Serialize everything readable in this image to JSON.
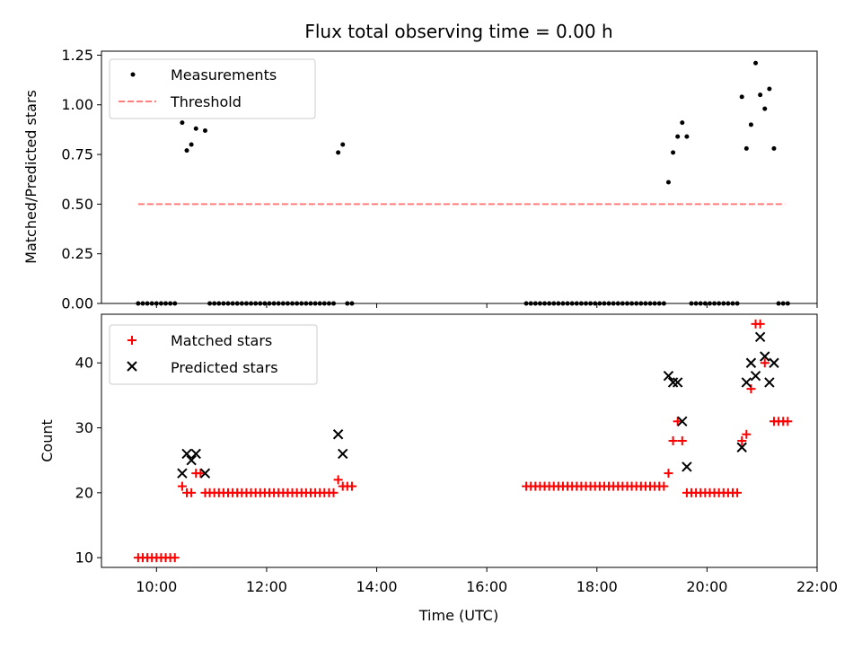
{
  "title": "Flux total observing time = 0.00 h",
  "chart_data": [
    {
      "type": "scatter",
      "ylabel": "Matched/Predicted stars",
      "xlabel": "",
      "xlim": [
        "09:00",
        "22:00"
      ],
      "ylim": [
        0,
        1.27
      ],
      "yticks": [
        0,
        0.25,
        0.5,
        0.75,
        1.0,
        1.25
      ],
      "ytick_labels": [
        "0.00",
        "0.25",
        "0.50",
        "0.75",
        "1.00",
        "1.25"
      ],
      "xticks": [
        "10:00",
        "12:00",
        "14:00",
        "16:00",
        "18:00",
        "20:00",
        "22:00"
      ],
      "legend_position": "top-left",
      "legend": [
        {
          "label": "Measurements",
          "marker": "dot",
          "color": "#000000"
        },
        {
          "label": "Threshold",
          "marker": "dashed-line",
          "color": "#ff7f7f"
        }
      ],
      "threshold": {
        "value": 0.5,
        "x_start": "09:40",
        "x_end": "21:25"
      },
      "measurements": [
        {
          "x": "09:40",
          "y": 0
        },
        {
          "x": "09:45",
          "y": 0
        },
        {
          "x": "09:50",
          "y": 0
        },
        {
          "x": "09:55",
          "y": 0
        },
        {
          "x": "10:00",
          "y": 0
        },
        {
          "x": "10:05",
          "y": 0
        },
        {
          "x": "10:10",
          "y": 0
        },
        {
          "x": "10:15",
          "y": 0
        },
        {
          "x": "10:20",
          "y": 0
        },
        {
          "x": "10:28",
          "y": 0.91
        },
        {
          "x": "10:33",
          "y": 0.77
        },
        {
          "x": "10:38",
          "y": 0.8
        },
        {
          "x": "10:43",
          "y": 0.88
        },
        {
          "x": "10:53",
          "y": 0.87
        },
        {
          "x": "10:58",
          "y": 0
        },
        {
          "x": "11:03",
          "y": 0
        },
        {
          "x": "11:08",
          "y": 0
        },
        {
          "x": "11:13",
          "y": 0
        },
        {
          "x": "11:18",
          "y": 0
        },
        {
          "x": "11:23",
          "y": 0
        },
        {
          "x": "11:28",
          "y": 0
        },
        {
          "x": "11:33",
          "y": 0
        },
        {
          "x": "11:38",
          "y": 0
        },
        {
          "x": "11:43",
          "y": 0
        },
        {
          "x": "11:48",
          "y": 0
        },
        {
          "x": "11:53",
          "y": 0
        },
        {
          "x": "11:58",
          "y": 0
        },
        {
          "x": "12:03",
          "y": 0
        },
        {
          "x": "12:08",
          "y": 0
        },
        {
          "x": "12:13",
          "y": 0
        },
        {
          "x": "12:18",
          "y": 0
        },
        {
          "x": "12:23",
          "y": 0
        },
        {
          "x": "12:28",
          "y": 0
        },
        {
          "x": "12:33",
          "y": 0
        },
        {
          "x": "12:38",
          "y": 0
        },
        {
          "x": "12:43",
          "y": 0
        },
        {
          "x": "12:48",
          "y": 0
        },
        {
          "x": "12:53",
          "y": 0
        },
        {
          "x": "12:58",
          "y": 0
        },
        {
          "x": "13:03",
          "y": 0
        },
        {
          "x": "13:08",
          "y": 0
        },
        {
          "x": "13:13",
          "y": 0
        },
        {
          "x": "13:18",
          "y": 0.76
        },
        {
          "x": "13:23",
          "y": 0.8
        },
        {
          "x": "13:28",
          "y": 0
        },
        {
          "x": "13:33",
          "y": 0
        },
        {
          "x": "16:43",
          "y": 0
        },
        {
          "x": "16:48",
          "y": 0
        },
        {
          "x": "16:53",
          "y": 0
        },
        {
          "x": "16:58",
          "y": 0
        },
        {
          "x": "17:03",
          "y": 0
        },
        {
          "x": "17:08",
          "y": 0
        },
        {
          "x": "17:13",
          "y": 0
        },
        {
          "x": "17:18",
          "y": 0
        },
        {
          "x": "17:23",
          "y": 0
        },
        {
          "x": "17:28",
          "y": 0
        },
        {
          "x": "17:33",
          "y": 0
        },
        {
          "x": "17:38",
          "y": 0
        },
        {
          "x": "17:43",
          "y": 0
        },
        {
          "x": "17:48",
          "y": 0
        },
        {
          "x": "17:53",
          "y": 0
        },
        {
          "x": "17:58",
          "y": 0
        },
        {
          "x": "18:03",
          "y": 0
        },
        {
          "x": "18:08",
          "y": 0
        },
        {
          "x": "18:13",
          "y": 0
        },
        {
          "x": "18:18",
          "y": 0
        },
        {
          "x": "18:23",
          "y": 0
        },
        {
          "x": "18:28",
          "y": 0
        },
        {
          "x": "18:33",
          "y": 0
        },
        {
          "x": "18:38",
          "y": 0
        },
        {
          "x": "18:43",
          "y": 0
        },
        {
          "x": "18:48",
          "y": 0
        },
        {
          "x": "18:53",
          "y": 0
        },
        {
          "x": "18:58",
          "y": 0
        },
        {
          "x": "19:03",
          "y": 0
        },
        {
          "x": "19:08",
          "y": 0
        },
        {
          "x": "19:13",
          "y": 0
        },
        {
          "x": "19:18",
          "y": 0.61
        },
        {
          "x": "19:23",
          "y": 0.76
        },
        {
          "x": "19:28",
          "y": 0.84
        },
        {
          "x": "19:33",
          "y": 0.91
        },
        {
          "x": "19:38",
          "y": 0.84
        },
        {
          "x": "19:43",
          "y": 0
        },
        {
          "x": "19:48",
          "y": 0
        },
        {
          "x": "19:53",
          "y": 0
        },
        {
          "x": "19:58",
          "y": 0
        },
        {
          "x": "20:03",
          "y": 0
        },
        {
          "x": "20:08",
          "y": 0
        },
        {
          "x": "20:13",
          "y": 0
        },
        {
          "x": "20:18",
          "y": 0
        },
        {
          "x": "20:23",
          "y": 0
        },
        {
          "x": "20:28",
          "y": 0
        },
        {
          "x": "20:33",
          "y": 0
        },
        {
          "x": "20:38",
          "y": 1.04
        },
        {
          "x": "20:43",
          "y": 0.78
        },
        {
          "x": "20:48",
          "y": 0.9
        },
        {
          "x": "20:53",
          "y": 1.21
        },
        {
          "x": "20:58",
          "y": 1.05
        },
        {
          "x": "21:03",
          "y": 0.98
        },
        {
          "x": "21:08",
          "y": 1.08
        },
        {
          "x": "21:13",
          "y": 0.78
        },
        {
          "x": "21:18",
          "y": 0
        },
        {
          "x": "21:23",
          "y": 0
        },
        {
          "x": "21:28",
          "y": 0
        }
      ]
    },
    {
      "type": "scatter",
      "ylabel": "Count",
      "xlabel": "Time (UTC)",
      "xlim": [
        "09:00",
        "22:00"
      ],
      "ylim": [
        8.5,
        47.5
      ],
      "yticks": [
        10,
        20,
        30,
        40
      ],
      "ytick_labels": [
        "10",
        "20",
        "30",
        "40"
      ],
      "xticks": [
        "10:00",
        "12:00",
        "14:00",
        "16:00",
        "18:00",
        "20:00",
        "22:00"
      ],
      "legend_position": "top-left",
      "series": [
        {
          "name": "Matched stars",
          "marker": "plus",
          "color": "#ff0000",
          "points": [
            {
              "x": "09:40",
              "y": 10
            },
            {
              "x": "09:45",
              "y": 10
            },
            {
              "x": "09:50",
              "y": 10
            },
            {
              "x": "09:55",
              "y": 10
            },
            {
              "x": "10:00",
              "y": 10
            },
            {
              "x": "10:05",
              "y": 10
            },
            {
              "x": "10:10",
              "y": 10
            },
            {
              "x": "10:15",
              "y": 10
            },
            {
              "x": "10:20",
              "y": 10
            },
            {
              "x": "10:28",
              "y": 21
            },
            {
              "x": "10:33",
              "y": 20
            },
            {
              "x": "10:38",
              "y": 20
            },
            {
              "x": "10:43",
              "y": 23
            },
            {
              "x": "10:48",
              "y": 23
            },
            {
              "x": "10:53",
              "y": 20
            },
            {
              "x": "10:58",
              "y": 20
            },
            {
              "x": "11:03",
              "y": 20
            },
            {
              "x": "11:08",
              "y": 20
            },
            {
              "x": "11:13",
              "y": 20
            },
            {
              "x": "11:18",
              "y": 20
            },
            {
              "x": "11:23",
              "y": 20
            },
            {
              "x": "11:28",
              "y": 20
            },
            {
              "x": "11:33",
              "y": 20
            },
            {
              "x": "11:38",
              "y": 20
            },
            {
              "x": "11:43",
              "y": 20
            },
            {
              "x": "11:48",
              "y": 20
            },
            {
              "x": "11:53",
              "y": 20
            },
            {
              "x": "11:58",
              "y": 20
            },
            {
              "x": "12:03",
              "y": 20
            },
            {
              "x": "12:08",
              "y": 20
            },
            {
              "x": "12:13",
              "y": 20
            },
            {
              "x": "12:18",
              "y": 20
            },
            {
              "x": "12:23",
              "y": 20
            },
            {
              "x": "12:28",
              "y": 20
            },
            {
              "x": "12:33",
              "y": 20
            },
            {
              "x": "12:38",
              "y": 20
            },
            {
              "x": "12:43",
              "y": 20
            },
            {
              "x": "12:48",
              "y": 20
            },
            {
              "x": "12:53",
              "y": 20
            },
            {
              "x": "12:58",
              "y": 20
            },
            {
              "x": "13:03",
              "y": 20
            },
            {
              "x": "13:08",
              "y": 20
            },
            {
              "x": "13:13",
              "y": 20
            },
            {
              "x": "13:18",
              "y": 22
            },
            {
              "x": "13:23",
              "y": 21
            },
            {
              "x": "13:28",
              "y": 21
            },
            {
              "x": "13:33",
              "y": 21
            },
            {
              "x": "16:43",
              "y": 21
            },
            {
              "x": "16:48",
              "y": 21
            },
            {
              "x": "16:53",
              "y": 21
            },
            {
              "x": "16:58",
              "y": 21
            },
            {
              "x": "17:03",
              "y": 21
            },
            {
              "x": "17:08",
              "y": 21
            },
            {
              "x": "17:13",
              "y": 21
            },
            {
              "x": "17:18",
              "y": 21
            },
            {
              "x": "17:23",
              "y": 21
            },
            {
              "x": "17:28",
              "y": 21
            },
            {
              "x": "17:33",
              "y": 21
            },
            {
              "x": "17:38",
              "y": 21
            },
            {
              "x": "17:43",
              "y": 21
            },
            {
              "x": "17:48",
              "y": 21
            },
            {
              "x": "17:53",
              "y": 21
            },
            {
              "x": "17:58",
              "y": 21
            },
            {
              "x": "18:03",
              "y": 21
            },
            {
              "x": "18:08",
              "y": 21
            },
            {
              "x": "18:13",
              "y": 21
            },
            {
              "x": "18:18",
              "y": 21
            },
            {
              "x": "18:23",
              "y": 21
            },
            {
              "x": "18:28",
              "y": 21
            },
            {
              "x": "18:33",
              "y": 21
            },
            {
              "x": "18:38",
              "y": 21
            },
            {
              "x": "18:43",
              "y": 21
            },
            {
              "x": "18:48",
              "y": 21
            },
            {
              "x": "18:53",
              "y": 21
            },
            {
              "x": "18:58",
              "y": 21
            },
            {
              "x": "19:03",
              "y": 21
            },
            {
              "x": "19:08",
              "y": 21
            },
            {
              "x": "19:13",
              "y": 21
            },
            {
              "x": "19:18",
              "y": 23
            },
            {
              "x": "19:23",
              "y": 28
            },
            {
              "x": "19:28",
              "y": 31
            },
            {
              "x": "19:33",
              "y": 28
            },
            {
              "x": "19:38",
              "y": 20
            },
            {
              "x": "19:43",
              "y": 20
            },
            {
              "x": "19:48",
              "y": 20
            },
            {
              "x": "19:53",
              "y": 20
            },
            {
              "x": "19:58",
              "y": 20
            },
            {
              "x": "20:03",
              "y": 20
            },
            {
              "x": "20:08",
              "y": 20
            },
            {
              "x": "20:13",
              "y": 20
            },
            {
              "x": "20:18",
              "y": 20
            },
            {
              "x": "20:23",
              "y": 20
            },
            {
              "x": "20:28",
              "y": 20
            },
            {
              "x": "20:33",
              "y": 20
            },
            {
              "x": "20:38",
              "y": 28
            },
            {
              "x": "20:43",
              "y": 29
            },
            {
              "x": "20:48",
              "y": 36
            },
            {
              "x": "20:53",
              "y": 46
            },
            {
              "x": "20:58",
              "y": 46
            },
            {
              "x": "21:03",
              "y": 40
            },
            {
              "x": "21:13",
              "y": 31
            },
            {
              "x": "21:18",
              "y": 31
            },
            {
              "x": "21:23",
              "y": 31
            },
            {
              "x": "21:28",
              "y": 31
            }
          ]
        },
        {
          "name": "Predicted stars",
          "marker": "x",
          "color": "#000000",
          "points": [
            {
              "x": "10:28",
              "y": 23
            },
            {
              "x": "10:33",
              "y": 26
            },
            {
              "x": "10:38",
              "y": 25
            },
            {
              "x": "10:43",
              "y": 26
            },
            {
              "x": "10:53",
              "y": 23
            },
            {
              "x": "13:18",
              "y": 29
            },
            {
              "x": "13:23",
              "y": 26
            },
            {
              "x": "19:18",
              "y": 38
            },
            {
              "x": "19:23",
              "y": 37
            },
            {
              "x": "19:28",
              "y": 37
            },
            {
              "x": "19:33",
              "y": 31
            },
            {
              "x": "19:38",
              "y": 24
            },
            {
              "x": "20:38",
              "y": 27
            },
            {
              "x": "20:43",
              "y": 37
            },
            {
              "x": "20:48",
              "y": 40
            },
            {
              "x": "20:53",
              "y": 38
            },
            {
              "x": "20:58",
              "y": 44
            },
            {
              "x": "21:03",
              "y": 41
            },
            {
              "x": "21:08",
              "y": 37
            },
            {
              "x": "21:13",
              "y": 40
            }
          ]
        }
      ]
    }
  ]
}
